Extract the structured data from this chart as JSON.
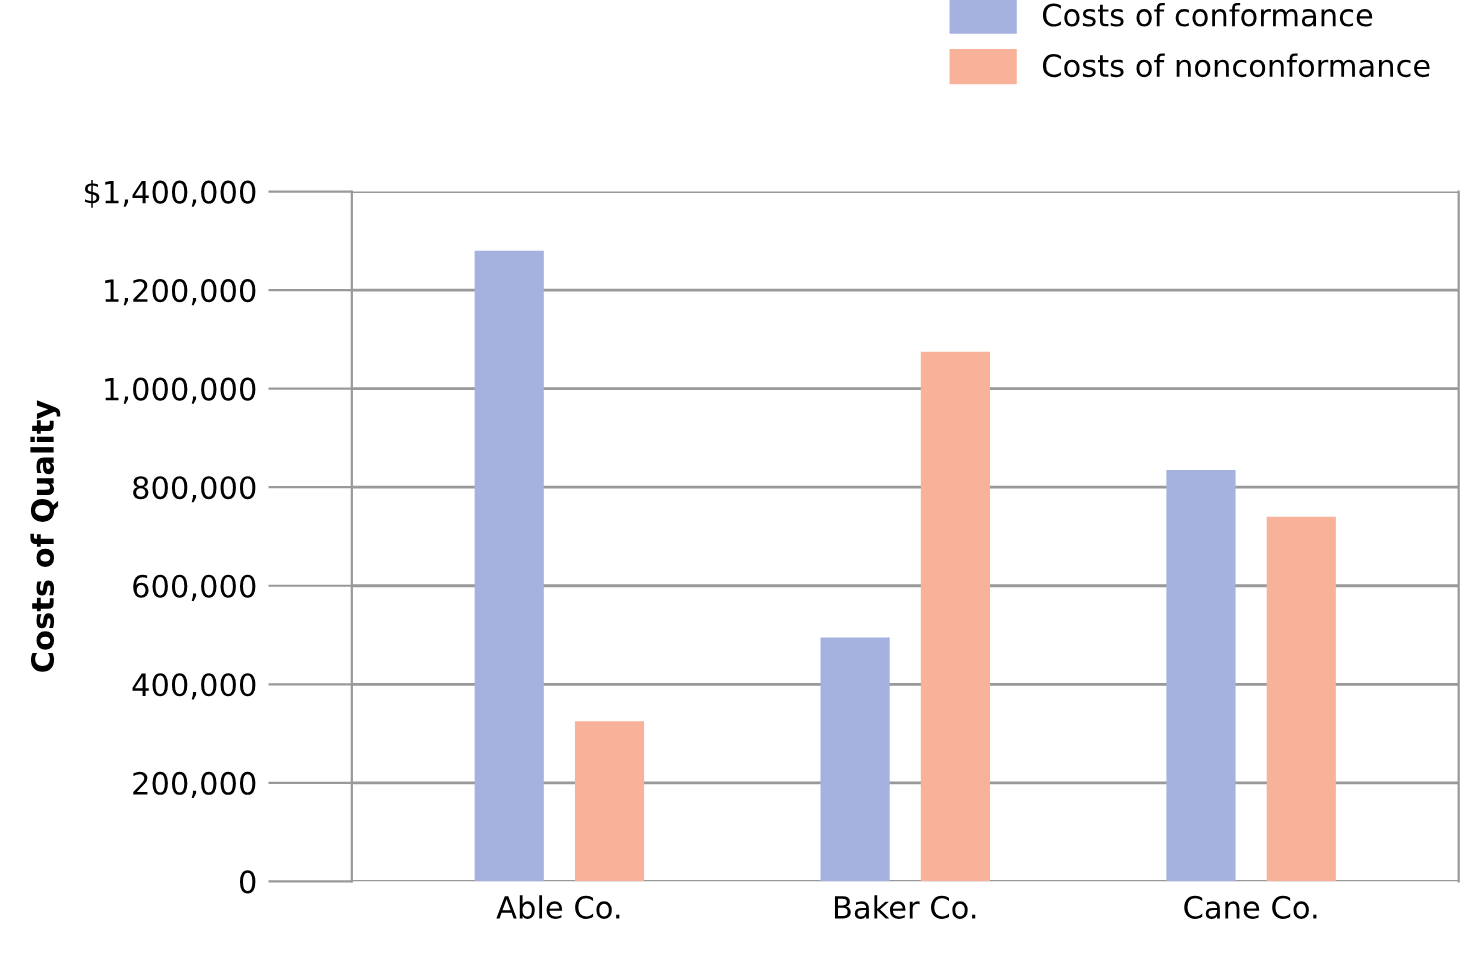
{
  "chart_data": {
    "type": "bar",
    "ylabel": "Costs of Quality",
    "categories": [
      "Able Co.",
      "Baker Co.",
      "Cane Co."
    ],
    "series": [
      {
        "name": "Costs of conformance",
        "color": "#a5b1de",
        "values": [
          1280000,
          495000,
          835000
        ]
      },
      {
        "name": "Costs of nonconformance",
        "color": "#f9b29a",
        "values": [
          325000,
          1075000,
          740000
        ]
      }
    ],
    "ylim": [
      0,
      1400000
    ],
    "yticks": [
      0,
      {
        "value": 200000,
        "label": "200,000"
      },
      {
        "value": 400000,
        "label": "400,000"
      },
      {
        "value": 600000,
        "label": "600,000"
      },
      {
        "value": 800000,
        "label": "800,000"
      },
      {
        "value": 1000000,
        "label": "1,000,000"
      },
      {
        "value": 1200000,
        "label": "1,200,000"
      },
      {
        "value": 1400000,
        "label": "$1,400,000"
      }
    ],
    "grid": "y",
    "legend": "top right"
  }
}
